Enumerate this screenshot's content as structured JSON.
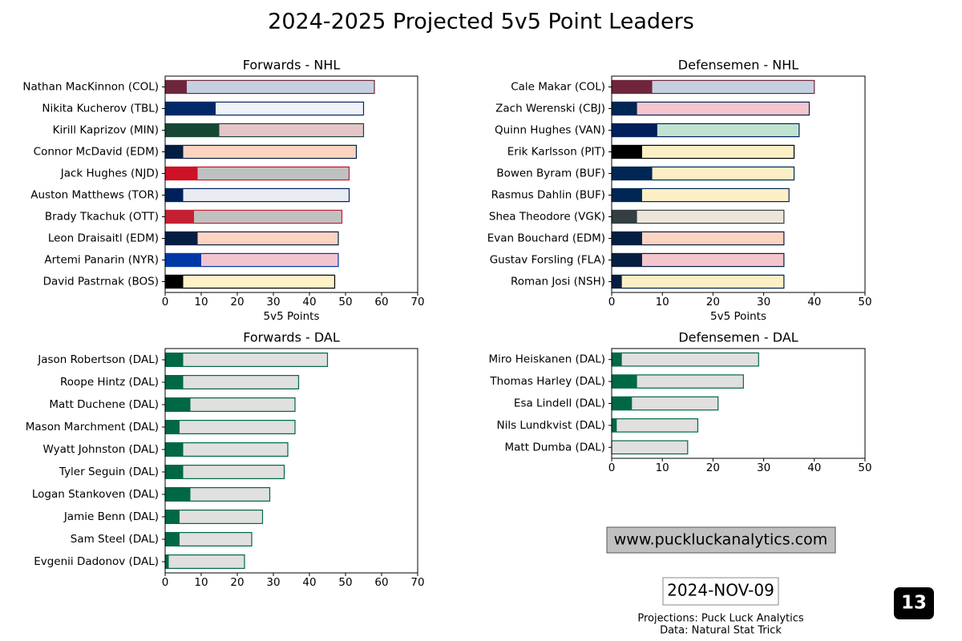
{
  "title": "2024-2025 Projected 5v5 Point Leaders",
  "chart_data": [
    {
      "type": "bar",
      "orientation": "horizontal",
      "barmode": "overlay",
      "title": "Forwards - NHL",
      "xlabel": "5v5 Points",
      "categories": [
        "Nathan MacKinnon (COL)",
        "Nikita Kucherov (TBL)",
        "Kirill Kaprizov (MIN)",
        "Connor McDavid (EDM)",
        "Jack Hughes (NJD)",
        "Auston Matthews (TOR)",
        "Brady Tkachuk (OTT)",
        "Leon Draisaitl (EDM)",
        "Artemi Panarin (NYR)",
        "David Pastrnak (BOS)"
      ],
      "series": [
        {
          "values": [
            58,
            55,
            55,
            53,
            51,
            51,
            49,
            48,
            48,
            47
          ],
          "colors": [
            "#c5d0e0",
            "#f0f3f7",
            "#e6c5c8",
            "#fdd4c0",
            "#c0c0c0",
            "#e8ecf0",
            "#c0c0c0",
            "#fdd4c0",
            "#f2c4cf",
            "#fef2c6"
          ]
        },
        {
          "values": [
            6,
            14,
            15,
            5,
            9,
            5,
            8,
            9,
            10,
            5
          ],
          "colors": [
            "#6f263d",
            "#002868",
            "#154734",
            "#041e42",
            "#ce1126",
            "#00205b",
            "#c52032",
            "#041e42",
            "#0038a8",
            "#000000"
          ]
        }
      ],
      "xlim": [
        0,
        70
      ],
      "xticks": [
        0,
        10,
        20,
        30,
        40,
        50,
        60,
        70
      ]
    },
    {
      "type": "bar",
      "orientation": "horizontal",
      "barmode": "overlay",
      "title": "Defensemen - NHL",
      "xlabel": "5v5 Points",
      "categories": [
        "Cale Makar (COL)",
        "Zach Werenski (CBJ)",
        "Quinn Hughes (VAN)",
        "Erik Karlsson (PIT)",
        "Bowen Byram (BUF)",
        "Rasmus Dahlin (BUF)",
        "Shea Theodore (VGK)",
        "Evan Bouchard (EDM)",
        "Gustav Forsling (FLA)",
        "Roman Josi (NSH)"
      ],
      "series": [
        {
          "values": [
            40,
            39,
            37,
            36,
            36,
            35,
            34,
            34,
            34,
            34
          ],
          "colors": [
            "#c5d0e0",
            "#f4c5cc",
            "#bfe3cf",
            "#fdefc5",
            "#fdefc5",
            "#fdefc5",
            "#ece6da",
            "#fdd4c0",
            "#f4c5cc",
            "#fdefc5"
          ]
        },
        {
          "values": [
            8,
            5,
            9,
            6,
            8,
            6,
            5,
            6,
            6,
            2
          ],
          "colors": [
            "#6f263d",
            "#002654",
            "#00205b",
            "#000000",
            "#002654",
            "#002654",
            "#333f42",
            "#041e42",
            "#041e42",
            "#041e42"
          ]
        }
      ],
      "xlim": [
        0,
        50
      ],
      "xticks": [
        0,
        10,
        20,
        30,
        40,
        50
      ]
    },
    {
      "type": "bar",
      "orientation": "horizontal",
      "barmode": "overlay",
      "title": "Forwards - DAL",
      "categories": [
        "Jason Robertson (DAL)",
        "Roope Hintz (DAL)",
        "Matt Duchene (DAL)",
        "Mason Marchment (DAL)",
        "Wyatt Johnston (DAL)",
        "Tyler Seguin (DAL)",
        "Logan Stankoven (DAL)",
        "Jamie Benn (DAL)",
        "Sam Steel (DAL)",
        "Evgenii Dadonov (DAL)"
      ],
      "series": [
        {
          "values": [
            45,
            37,
            36,
            36,
            34,
            33,
            29,
            27,
            24,
            22
          ],
          "color": "#e0e0de"
        },
        {
          "values": [
            5,
            5,
            7,
            4,
            5,
            5,
            7,
            4,
            4,
            1
          ],
          "color": "#006847"
        }
      ],
      "xlim": [
        0,
        70
      ],
      "xticks": [
        0,
        10,
        20,
        30,
        40,
        50,
        60,
        70
      ]
    },
    {
      "type": "bar",
      "orientation": "horizontal",
      "barmode": "overlay",
      "title": "Defensemen - DAL",
      "categories": [
        "Miro Heiskanen (DAL)",
        "Thomas Harley (DAL)",
        "Esa Lindell (DAL)",
        "Nils Lundkvist (DAL)",
        "Matt Dumba (DAL)"
      ],
      "series": [
        {
          "values": [
            29,
            26,
            21,
            17,
            15
          ],
          "color": "#e0e0de"
        },
        {
          "values": [
            2,
            5,
            4,
            1,
            0
          ],
          "color": "#006847"
        }
      ],
      "xlim": [
        0,
        50
      ],
      "xticks": [
        0,
        10,
        20,
        30,
        40,
        50
      ]
    }
  ],
  "website": "www.puckluckanalytics.com",
  "date": "2024-NOV-09",
  "credits": [
    "Projections: Puck Luck Analytics",
    "Data: Natural Stat Trick"
  ],
  "page_number": "13"
}
